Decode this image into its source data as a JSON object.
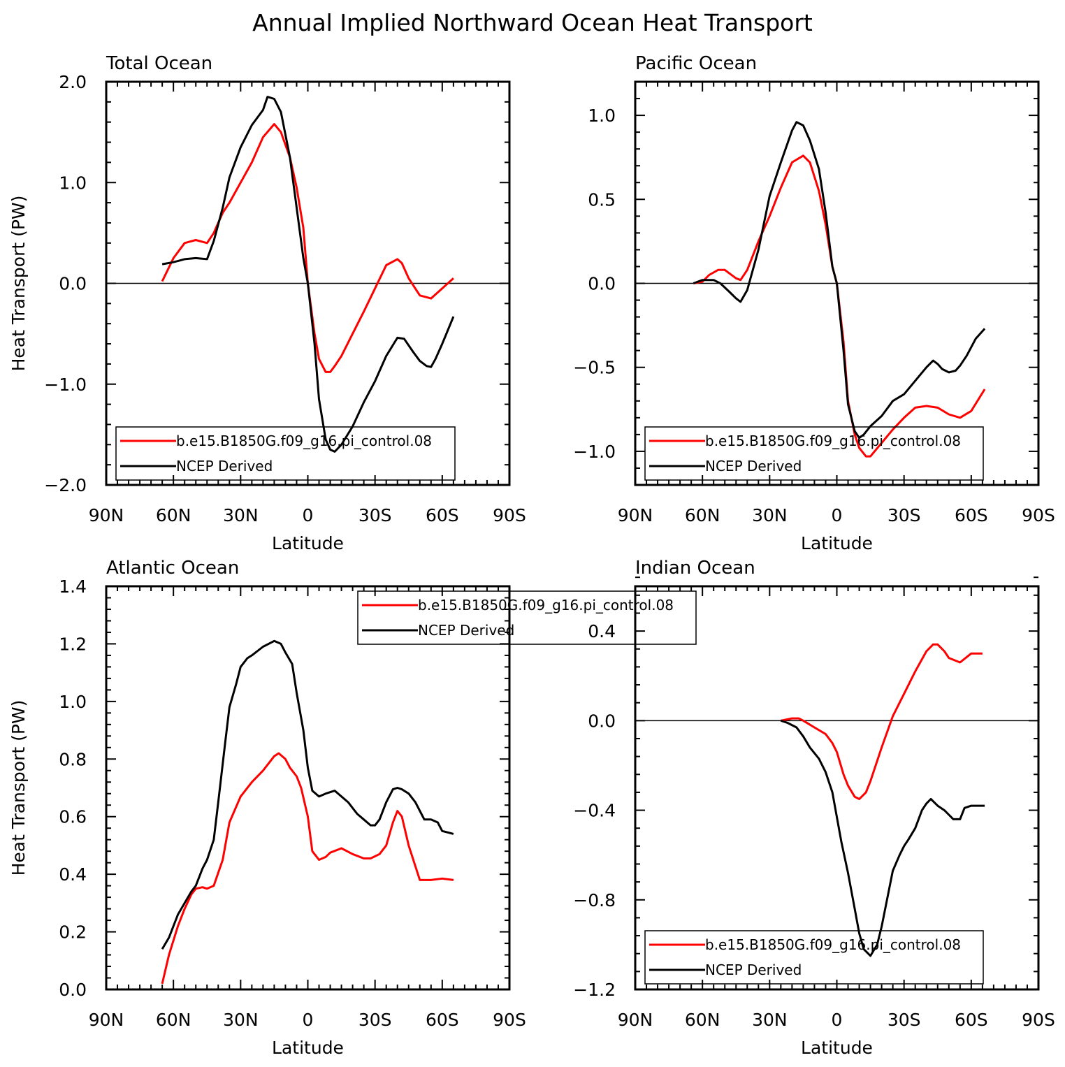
{
  "title": "Annual Implied Northward Ocean Heat Transport",
  "legend": [
    "b.e15.B1850G.f09_g16.pi_control.08",
    "NCEP Derived"
  ],
  "colors": {
    "model": "#ff0000",
    "obs": "#000000",
    "zero_line": "#000000"
  },
  "chart_data": [
    {
      "type": "line",
      "title": "Total Ocean",
      "xlabel": "Latitude",
      "ylabel": "Heat Transport (PW)",
      "xlim": [
        90,
        -90
      ],
      "xticks": [
        90,
        60,
        30,
        0,
        -30,
        -60,
        -90
      ],
      "xtick_labels": [
        "90N",
        "60N",
        "30N",
        "0",
        "30S",
        "60S",
        "90S"
      ],
      "ylim": [
        -2.0,
        2.0
      ],
      "yticks": [
        -2.0,
        -1.0,
        0.0,
        1.0,
        2.0
      ],
      "ytick_labels": [
        "−2.0",
        "−1.0",
        "0.0",
        "1.0",
        "2.0"
      ],
      "legend_position": "bottom-left",
      "series": [
        {
          "name": "b.e15.B1850G.f09_g16.pi_control.08",
          "color": "#ff0000",
          "x": [
            65,
            60,
            55,
            50,
            45,
            42,
            38,
            35,
            30,
            25,
            20,
            15,
            12,
            8,
            5,
            2,
            0,
            -3,
            -5,
            -8,
            -10,
            -12,
            -15,
            -20,
            -25,
            -30,
            -35,
            -40,
            -42,
            -45,
            -50,
            -55,
            -60,
            -65
          ],
          "y": [
            0.02,
            0.25,
            0.4,
            0.43,
            0.4,
            0.5,
            0.7,
            0.8,
            1.0,
            1.2,
            1.45,
            1.58,
            1.5,
            1.25,
            0.95,
            0.55,
            0.0,
            -0.5,
            -0.75,
            -0.88,
            -0.88,
            -0.82,
            -0.72,
            -0.5,
            -0.28,
            -0.05,
            0.18,
            0.24,
            0.2,
            0.05,
            -0.12,
            -0.15,
            -0.05,
            0.05
          ]
        },
        {
          "name": "NCEP Derived",
          "color": "#000000",
          "x": [
            65,
            60,
            55,
            50,
            45,
            42,
            38,
            35,
            30,
            25,
            20,
            18,
            15,
            12,
            8,
            5,
            2,
            0,
            -3,
            -5,
            -8,
            -10,
            -12,
            -15,
            -20,
            -25,
            -30,
            -35,
            -40,
            -43,
            -47,
            -50,
            -53,
            -55,
            -57,
            -60,
            -65
          ],
          "y": [
            0.19,
            0.21,
            0.24,
            0.25,
            0.24,
            0.42,
            0.75,
            1.05,
            1.35,
            1.57,
            1.72,
            1.85,
            1.83,
            1.7,
            1.25,
            0.75,
            0.25,
            0.0,
            -0.6,
            -1.15,
            -1.55,
            -1.65,
            -1.67,
            -1.6,
            -1.42,
            -1.18,
            -0.97,
            -0.72,
            -0.54,
            -0.55,
            -0.68,
            -0.77,
            -0.82,
            -0.83,
            -0.75,
            -0.6,
            -0.33
          ]
        }
      ]
    },
    {
      "type": "line",
      "title": "Pacific Ocean",
      "xlabel": "Latitude",
      "ylabel": "",
      "xlim": [
        90,
        -90
      ],
      "xticks": [
        90,
        60,
        30,
        0,
        -30,
        -60,
        -90
      ],
      "xtick_labels": [
        "90N",
        "60N",
        "30N",
        "0",
        "30S",
        "60S",
        "90S"
      ],
      "ylim": [
        -1.2,
        1.2
      ],
      "yticks": [
        -1.0,
        -0.5,
        0.0,
        0.5,
        1.0
      ],
      "ytick_labels": [
        "−1.0",
        "−0.5",
        "0.0",
        "0.5",
        "1.0"
      ],
      "legend_position": "bottom-left",
      "series": [
        {
          "name": "b.e15.B1850G.f09_g16.pi_control.08",
          "color": "#ff0000",
          "x": [
            64,
            60,
            57,
            53,
            50,
            45,
            43,
            40,
            35,
            30,
            25,
            20,
            15,
            12,
            8,
            5,
            2,
            0,
            -3,
            -5,
            -8,
            -10,
            -13,
            -15,
            -20,
            -25,
            -30,
            -35,
            -40,
            -45,
            -50,
            -55,
            -60,
            -66
          ],
          "y": [
            0.0,
            0.01,
            0.05,
            0.08,
            0.08,
            0.03,
            0.02,
            0.08,
            0.25,
            0.4,
            0.57,
            0.72,
            0.76,
            0.72,
            0.55,
            0.35,
            0.1,
            0.0,
            -0.35,
            -0.7,
            -0.9,
            -0.98,
            -1.03,
            -1.03,
            -0.95,
            -0.87,
            -0.8,
            -0.74,
            -0.73,
            -0.74,
            -0.78,
            -0.8,
            -0.76,
            -0.63
          ]
        },
        {
          "name": "NCEP Derived",
          "color": "#000000",
          "x": [
            64,
            60,
            55,
            52,
            48,
            45,
            43,
            40,
            35,
            30,
            25,
            20,
            18,
            15,
            12,
            8,
            5,
            2,
            0,
            -3,
            -5,
            -8,
            -10,
            -12,
            -15,
            -20,
            -25,
            -30,
            -35,
            -40,
            -43,
            -45,
            -47,
            -50,
            -53,
            -55,
            -58,
            -62,
            -66
          ],
          "y": [
            0.0,
            0.02,
            0.02,
            0.0,
            -0.05,
            -0.09,
            -0.11,
            -0.04,
            0.2,
            0.52,
            0.72,
            0.91,
            0.96,
            0.94,
            0.85,
            0.68,
            0.42,
            0.1,
            0.0,
            -0.4,
            -0.72,
            -0.88,
            -0.92,
            -0.9,
            -0.85,
            -0.79,
            -0.7,
            -0.66,
            -0.58,
            -0.5,
            -0.46,
            -0.48,
            -0.51,
            -0.53,
            -0.52,
            -0.49,
            -0.43,
            -0.33,
            -0.27
          ]
        }
      ]
    },
    {
      "type": "line",
      "title": "Atlantic Ocean",
      "xlabel": "Latitude",
      "ylabel": "Heat Transport (PW)",
      "xlim": [
        90,
        -90
      ],
      "xticks": [
        90,
        60,
        30,
        0,
        -30,
        -60,
        -90
      ],
      "xtick_labels": [
        "90N",
        "60N",
        "30N",
        "0",
        "30S",
        "60S",
        "90S"
      ],
      "ylim": [
        0.0,
        1.4
      ],
      "yticks": [
        0.0,
        0.2,
        0.4,
        0.6,
        0.8,
        1.0,
        1.2,
        1.4
      ],
      "ytick_labels": [
        "0.0",
        "0.2",
        "0.4",
        "0.6",
        "0.8",
        "1.0",
        "1.2",
        "1.4"
      ],
      "legend_position": "top-center",
      "series": [
        {
          "name": "b.e15.B1850G.f09_g16.pi_control.08",
          "color": "#ff0000",
          "x": [
            65,
            62,
            58,
            55,
            52,
            50,
            47,
            45,
            42,
            38,
            35,
            30,
            25,
            20,
            17,
            15,
            13,
            10,
            8,
            5,
            3,
            0,
            -2,
            -5,
            -8,
            -10,
            -15,
            -20,
            -25,
            -28,
            -32,
            -35,
            -38,
            -40,
            -42,
            -45,
            -50,
            -55,
            -60,
            -65
          ],
          "y": [
            0.02,
            0.12,
            0.22,
            0.28,
            0.33,
            0.35,
            0.355,
            0.35,
            0.36,
            0.45,
            0.58,
            0.67,
            0.72,
            0.76,
            0.79,
            0.81,
            0.82,
            0.8,
            0.77,
            0.74,
            0.7,
            0.6,
            0.48,
            0.45,
            0.46,
            0.475,
            0.49,
            0.47,
            0.455,
            0.455,
            0.47,
            0.5,
            0.58,
            0.62,
            0.6,
            0.5,
            0.38,
            0.38,
            0.385,
            0.38
          ]
        },
        {
          "name": "NCEP Derived",
          "color": "#000000",
          "x": [
            65,
            62,
            58,
            55,
            52,
            50,
            47,
            45,
            42,
            40,
            37,
            35,
            32,
            30,
            27,
            25,
            20,
            15,
            12,
            10,
            7,
            5,
            2,
            0,
            -2,
            -5,
            -8,
            -12,
            -15,
            -18,
            -22,
            -25,
            -28,
            -30,
            -32,
            -35,
            -38,
            -40,
            -42,
            -45,
            -48,
            -50,
            -52,
            -55,
            -58,
            -60,
            -65
          ],
          "y": [
            0.14,
            0.18,
            0.26,
            0.3,
            0.34,
            0.36,
            0.42,
            0.45,
            0.52,
            0.65,
            0.85,
            0.98,
            1.06,
            1.12,
            1.15,
            1.16,
            1.19,
            1.21,
            1.2,
            1.17,
            1.13,
            1.03,
            0.9,
            0.77,
            0.69,
            0.67,
            0.68,
            0.69,
            0.67,
            0.65,
            0.61,
            0.59,
            0.57,
            0.57,
            0.59,
            0.65,
            0.695,
            0.7,
            0.695,
            0.68,
            0.65,
            0.62,
            0.59,
            0.59,
            0.58,
            0.55,
            0.54
          ]
        }
      ]
    },
    {
      "type": "line",
      "title": "Indian Ocean",
      "xlabel": "Latitude",
      "ylabel": "",
      "xlim": [
        90,
        -90
      ],
      "xticks": [
        90,
        60,
        30,
        0,
        -30,
        -60,
        -90
      ],
      "xtick_labels": [
        "90N",
        "60N",
        "30N",
        "0",
        "30S",
        "60S",
        "90S"
      ],
      "ylim": [
        -1.2,
        0.6
      ],
      "yticks": [
        -1.2,
        -0.8,
        -0.4,
        0.0,
        0.4
      ],
      "ytick_labels": [
        "−1.2",
        "−0.8",
        "−0.4",
        "0.0",
        "0.4"
      ],
      "legend_position": "bottom-left",
      "series": [
        {
          "name": "b.e15.B1850G.f09_g16.pi_control.08",
          "color": "#ff0000",
          "x": [
            25,
            20,
            17,
            15,
            10,
            5,
            2,
            0,
            -3,
            -5,
            -8,
            -10,
            -13,
            -15,
            -20,
            -25,
            -30,
            -35,
            -40,
            -43,
            -45,
            -48,
            -50,
            -55,
            -60,
            -65
          ],
          "y": [
            0.0,
            0.01,
            0.01,
            0.0,
            -0.03,
            -0.06,
            -0.1,
            -0.14,
            -0.24,
            -0.29,
            -0.34,
            -0.35,
            -0.32,
            -0.27,
            -0.12,
            0.02,
            0.12,
            0.22,
            0.31,
            0.34,
            0.34,
            0.31,
            0.28,
            0.26,
            0.3,
            0.3
          ]
        },
        {
          "name": "NCEP Derived",
          "color": "#000000",
          "x": [
            25,
            22,
            18,
            15,
            12,
            8,
            5,
            2,
            0,
            -2,
            -5,
            -8,
            -10,
            -12,
            -15,
            -18,
            -20,
            -25,
            -28,
            -30,
            -32,
            -35,
            -38,
            -40,
            -42,
            -45,
            -48,
            -50,
            -52,
            -55,
            -57,
            -60,
            -66
          ],
          "y": [
            0.0,
            -0.01,
            -0.03,
            -0.07,
            -0.12,
            -0.17,
            -0.23,
            -0.32,
            -0.43,
            -0.54,
            -0.68,
            -0.84,
            -0.95,
            -1.02,
            -1.05,
            -1.0,
            -0.92,
            -0.67,
            -0.6,
            -0.56,
            -0.53,
            -0.48,
            -0.4,
            -0.37,
            -0.35,
            -0.38,
            -0.4,
            -0.42,
            -0.44,
            -0.44,
            -0.39,
            -0.38,
            -0.38
          ]
        }
      ]
    }
  ]
}
